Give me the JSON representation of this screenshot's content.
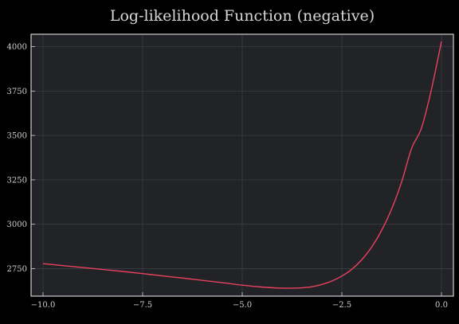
{
  "chart_data": {
    "type": "line",
    "title": "Log-likelihood Function (negative)",
    "xlabel": "",
    "ylabel": "",
    "xlim": [
      -10.3,
      0.3
    ],
    "ylim": [
      2595,
      4070
    ],
    "xticks": [
      -10.0,
      -7.5,
      -5.0,
      -2.5,
      0.0
    ],
    "xtick_labels": [
      "−10.0",
      "−7.5",
      "−5.0",
      "−2.5",
      "0.0"
    ],
    "yticks": [
      2750,
      3000,
      3250,
      3500,
      3750,
      4000
    ],
    "ytick_labels": [
      "2750",
      "3000",
      "3250",
      "3500",
      "3750",
      "4000"
    ],
    "grid": true,
    "series": [
      {
        "color": "#e8425e",
        "x": [
          -10.0,
          -9.5,
          -9.0,
          -8.5,
          -8.0,
          -7.5,
          -7.0,
          -6.5,
          -6.0,
          -5.5,
          -5.0,
          -4.5,
          -4.0,
          -3.75,
          -3.5,
          -3.25,
          -3.0,
          -2.75,
          -2.5,
          -2.25,
          -2.0,
          -1.75,
          -1.5,
          -1.25,
          -1.0,
          -0.75,
          -0.5,
          -0.25,
          0.0
        ],
        "y": [
          2778,
          2767,
          2756,
          2745,
          2734,
          2722,
          2709,
          2697,
          2684,
          2671,
          2657,
          2646,
          2640,
          2640,
          2642,
          2648,
          2661,
          2680,
          2708,
          2746,
          2800,
          2872,
          2966,
          3086,
          3238,
          3427,
          3543,
          3761,
          4030
        ]
      }
    ],
    "colors": {
      "page_background": "#000000",
      "plot_background": "#222327",
      "grid": "#3a3d44",
      "frame": "#d0d0d0",
      "text": "#cfcfcf",
      "line": "#e8425e"
    }
  }
}
